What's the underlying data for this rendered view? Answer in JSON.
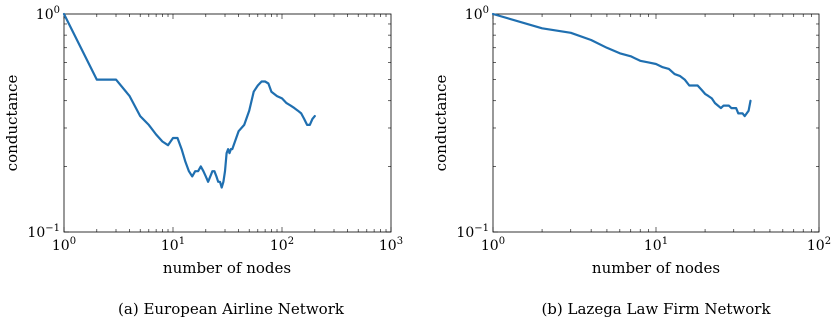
{
  "colors": {
    "series": "#1f6fb0",
    "axis": "#000000"
  },
  "chart_data": [
    {
      "type": "line",
      "caption": "(a) European Airline Network",
      "xlabel": "number of nodes",
      "ylabel": "conductance",
      "xscale": "log",
      "yscale": "log",
      "xlim": [
        1,
        1000
      ],
      "ylim": [
        0.1,
        1
      ],
      "xticks": [
        {
          "base": "10",
          "exp": "0",
          "value": 1
        },
        {
          "base": "10",
          "exp": "1",
          "value": 10
        },
        {
          "base": "10",
          "exp": "2",
          "value": 100
        },
        {
          "base": "10",
          "exp": "3",
          "value": 1000
        }
      ],
      "yticks": [
        {
          "base": "10",
          "exp": "−1",
          "value": 0.1
        },
        {
          "base": "10",
          "exp": "0",
          "value": 1
        }
      ],
      "grid": false,
      "series": [
        {
          "x": [
            1,
            2,
            3,
            4,
            5,
            6,
            7,
            8,
            9,
            10,
            11,
            12,
            13,
            14,
            15,
            16,
            17,
            18,
            19,
            20,
            21,
            22,
            23,
            24,
            25,
            26,
            27,
            28,
            29,
            30,
            31,
            32,
            33,
            34,
            35,
            40,
            45,
            50,
            55,
            60,
            65,
            70,
            75,
            80,
            90,
            100,
            110,
            120,
            130,
            140,
            150,
            160,
            170,
            180,
            190,
            200
          ],
          "y": [
            1.0,
            0.5,
            0.5,
            0.42,
            0.34,
            0.31,
            0.28,
            0.26,
            0.25,
            0.27,
            0.27,
            0.24,
            0.21,
            0.19,
            0.18,
            0.19,
            0.19,
            0.2,
            0.19,
            0.18,
            0.17,
            0.18,
            0.19,
            0.19,
            0.18,
            0.17,
            0.17,
            0.16,
            0.17,
            0.19,
            0.23,
            0.24,
            0.23,
            0.24,
            0.24,
            0.29,
            0.31,
            0.36,
            0.44,
            0.47,
            0.49,
            0.49,
            0.48,
            0.44,
            0.42,
            0.41,
            0.39,
            0.38,
            0.37,
            0.36,
            0.35,
            0.33,
            0.31,
            0.31,
            0.33,
            0.34
          ]
        }
      ]
    },
    {
      "type": "line",
      "caption": "(b) Lazega Law Firm Network",
      "xlabel": "number of nodes",
      "ylabel": "conductance",
      "xscale": "log",
      "yscale": "log",
      "xlim": [
        1,
        100
      ],
      "ylim": [
        0.1,
        1
      ],
      "xticks": [
        {
          "base": "10",
          "exp": "0",
          "value": 1
        },
        {
          "base": "10",
          "exp": "1",
          "value": 10
        },
        {
          "base": "10",
          "exp": "2",
          "value": 100
        }
      ],
      "yticks": [
        {
          "base": "10",
          "exp": "−1",
          "value": 0.1
        },
        {
          "base": "10",
          "exp": "0",
          "value": 1
        }
      ],
      "grid": false,
      "series": [
        {
          "x": [
            1,
            2,
            3,
            4,
            5,
            6,
            7,
            8,
            9,
            10,
            11,
            12,
            13,
            14,
            15,
            16,
            17,
            18,
            19,
            20,
            21,
            22,
            23,
            24,
            25,
            26,
            27,
            28,
            29,
            30,
            31,
            32,
            33,
            34,
            35,
            36,
            37,
            38
          ],
          "y": [
            1.0,
            0.86,
            0.82,
            0.76,
            0.7,
            0.66,
            0.64,
            0.61,
            0.6,
            0.59,
            0.57,
            0.56,
            0.53,
            0.52,
            0.5,
            0.47,
            0.47,
            0.47,
            0.45,
            0.43,
            0.42,
            0.41,
            0.39,
            0.38,
            0.37,
            0.38,
            0.38,
            0.38,
            0.37,
            0.37,
            0.37,
            0.35,
            0.35,
            0.35,
            0.34,
            0.35,
            0.36,
            0.4
          ]
        }
      ]
    }
  ]
}
